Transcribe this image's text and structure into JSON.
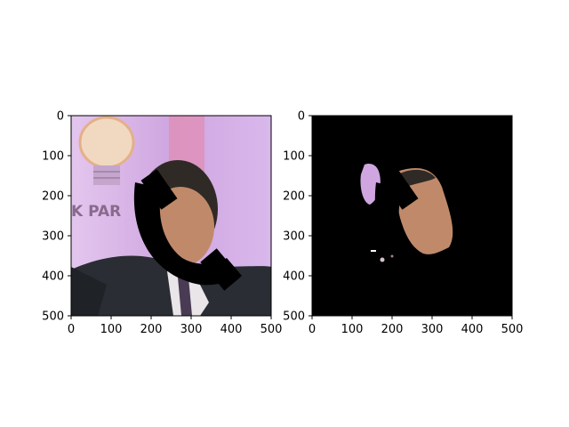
{
  "chart_data": [
    {
      "type": "image",
      "title": "",
      "xlabel": "",
      "ylabel": "",
      "xlim": [
        0,
        500
      ],
      "ylim": [
        500,
        0
      ],
      "xticks": [
        0,
        100,
        200,
        300,
        400,
        500
      ],
      "yticks": [
        0,
        100,
        200,
        300,
        400,
        500
      ],
      "xtick_labels": [
        "0",
        "100",
        "200",
        "300",
        "400",
        "500"
      ],
      "ytick_labels": [
        "0",
        "100",
        "200",
        "300",
        "400",
        "500"
      ],
      "grid": false,
      "content": "photo of a man in a dark suit in front of a purple backdrop with a light-bulb logo; face region occluded by black strokes"
    },
    {
      "type": "image",
      "title": "",
      "xlabel": "",
      "ylabel": "",
      "xlim": [
        0,
        500
      ],
      "ylim": [
        500,
        0
      ],
      "xticks": [
        0,
        100,
        200,
        300,
        400,
        500
      ],
      "yticks": [
        0,
        100,
        200,
        300,
        400,
        500
      ],
      "xtick_labels": [
        "0",
        "100",
        "200",
        "300",
        "400",
        "500"
      ],
      "ytick_labels": [
        "0",
        "100",
        "200",
        "300",
        "400",
        "500"
      ],
      "grid": false,
      "content": "segmentation mask: only the face region visible on black background, with black occluding strokes"
    }
  ],
  "colors": {
    "backdrop_purple": "#d8b4e8",
    "backdrop_pink": "#e39bc4",
    "suit_dark": "#2a2d33",
    "skin": "#c08a6a",
    "hair": "#2f2a26",
    "mask_black": "#000000"
  },
  "left_image": {
    "banner_text": "K PAR"
  }
}
